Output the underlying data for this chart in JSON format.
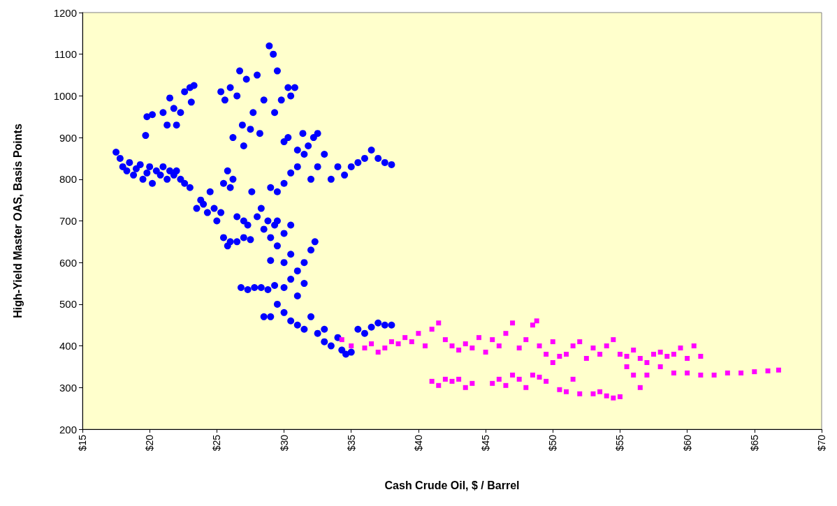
{
  "chart_data": {
    "type": "scatter",
    "xlabel": "Cash Crude Oil, $ / Barrel",
    "ylabel": "High-Yield Master OAS, Basis Points",
    "xlim": [
      15,
      70
    ],
    "ylim": [
      200,
      1200
    ],
    "xticks": [
      {
        "value": 15,
        "label": "$15"
      },
      {
        "value": 20,
        "label": "$20"
      },
      {
        "value": 25,
        "label": "$25"
      },
      {
        "value": 30,
        "label": "$30"
      },
      {
        "value": 35,
        "label": "$35"
      },
      {
        "value": 40,
        "label": "$40"
      },
      {
        "value": 45,
        "label": "$45"
      },
      {
        "value": 50,
        "label": "$50"
      },
      {
        "value": 55,
        "label": "$55"
      },
      {
        "value": 60,
        "label": "$60"
      },
      {
        "value": 65,
        "label": "$65"
      },
      {
        "value": 70,
        "label": "$70"
      }
    ],
    "yticks": [
      200,
      300,
      400,
      500,
      600,
      700,
      800,
      900,
      1000,
      1100,
      1200
    ],
    "grid": false,
    "series": [
      {
        "color": "#0000ff",
        "marker": "circle",
        "x": [
          17.5,
          17.8,
          18,
          18.3,
          18.5,
          18.8,
          19,
          19.3,
          19.5,
          19.8,
          20,
          20.2,
          20.5,
          20.8,
          21,
          21.3,
          21.5,
          21.8,
          22,
          22.3,
          22.6,
          23,
          19.7,
          19.8,
          20.2,
          21,
          21.3,
          21.5,
          21.8,
          22,
          22.3,
          22.6,
          23,
          23.3,
          23.1,
          23.5,
          23.8,
          24,
          24.3,
          24.5,
          24.8,
          25,
          25.3,
          25.5,
          25.8,
          26,
          25.5,
          25.8,
          26,
          26.2,
          25.3,
          25.6,
          26,
          26.2,
          26.5,
          26.7,
          26.9,
          27,
          27.2,
          27.5,
          27.7,
          28,
          28.2,
          28.5,
          28.9,
          29.2,
          29.5,
          29.3,
          29.8,
          30,
          30.3,
          30.5,
          30.3,
          30.8,
          31,
          31.4,
          31.8,
          32.2,
          32.5,
          26.5,
          27,
          27.3,
          27.6,
          28,
          28.3,
          28.5,
          28.8,
          29,
          29.3,
          29.5,
          30,
          30.5,
          26.5,
          27,
          27.5,
          29,
          29.5,
          30,
          30.5,
          31,
          31.5,
          32,
          32.5,
          33,
          33.5,
          34,
          34.5,
          35,
          35.5,
          36,
          36.5,
          37,
          37.5,
          38,
          29,
          29.5,
          30,
          30.5,
          31,
          31.5,
          32,
          32.3,
          30,
          30.5,
          31,
          31.5,
          29.5,
          30,
          30.5,
          31,
          31.5,
          32,
          29,
          28.5,
          26.8,
          27.3,
          27.8,
          28.3,
          28.8,
          29.3,
          32.5,
          33,
          33.5,
          34,
          34.3,
          34.6,
          35,
          35.5,
          36,
          36.5,
          37,
          37.5,
          38,
          33
        ],
        "values": [
          865,
          850,
          830,
          820,
          840,
          810,
          825,
          835,
          800,
          815,
          830,
          790,
          820,
          810,
          830,
          800,
          820,
          810,
          820,
          800,
          790,
          780,
          905,
          950,
          955,
          960,
          930,
          995,
          970,
          930,
          960,
          1010,
          1020,
          1025,
          985,
          730,
          750,
          740,
          720,
          770,
          730,
          700,
          720,
          660,
          640,
          650,
          790,
          820,
          780,
          800,
          1010,
          990,
          1020,
          900,
          1000,
          1060,
          930,
          880,
          1040,
          920,
          960,
          1050,
          910,
          990,
          1120,
          1100,
          1060,
          960,
          990,
          890,
          1020,
          1000,
          900,
          1020,
          870,
          910,
          880,
          900,
          910,
          710,
          700,
          690,
          770,
          710,
          730,
          680,
          700,
          660,
          690,
          700,
          670,
          690,
          650,
          660,
          655,
          780,
          770,
          790,
          815,
          830,
          860,
          800,
          830,
          860,
          800,
          830,
          810,
          830,
          840,
          850,
          870,
          850,
          840,
          835,
          605,
          640,
          600,
          620,
          580,
          600,
          630,
          650,
          540,
          560,
          520,
          550,
          500,
          480,
          460,
          450,
          440,
          470,
          470,
          470,
          540,
          535,
          540,
          540,
          535,
          545,
          430,
          410,
          400,
          420,
          390,
          380,
          385,
          440,
          430,
          445,
          455,
          450,
          450,
          440
        ]
      },
      {
        "color": "#ff00ff",
        "marker": "square",
        "x": [
          34.3,
          35,
          36,
          36.5,
          37,
          37.5,
          38,
          38.5,
          39,
          39.5,
          40,
          40.5,
          41,
          41.5,
          42,
          42.5,
          43,
          43.5,
          44,
          44.5,
          45,
          45.5,
          46,
          46.5,
          47,
          47.5,
          48,
          48.5,
          48.8,
          49,
          49.5,
          50,
          50.5,
          51,
          51.5,
          52,
          52.5,
          53,
          53.5,
          54,
          54.5,
          55,
          55.5,
          56,
          56.5,
          57,
          57.5,
          58,
          58.5,
          59,
          59.5,
          60,
          60.5,
          61,
          41,
          41.5,
          42,
          42.5,
          43,
          43.5,
          44,
          45.5,
          46,
          46.5,
          47,
          47.5,
          48,
          48.5,
          49,
          49.5,
          50,
          50.5,
          51,
          51.5,
          52,
          53,
          53.5,
          54,
          54.5,
          55,
          55.5,
          56,
          56.5,
          57,
          58,
          59,
          60,
          61,
          62,
          63,
          64,
          65,
          66,
          66.8
        ],
        "values": [
          415,
          400,
          395,
          405,
          385,
          395,
          410,
          405,
          420,
          410,
          430,
          400,
          440,
          455,
          415,
          400,
          390,
          405,
          395,
          420,
          385,
          415,
          400,
          430,
          455,
          395,
          415,
          450,
          460,
          400,
          380,
          410,
          375,
          380,
          400,
          410,
          370,
          395,
          380,
          400,
          415,
          380,
          375,
          390,
          370,
          360,
          380,
          385,
          375,
          380,
          395,
          370,
          400,
          375,
          315,
          305,
          320,
          315,
          320,
          300,
          310,
          310,
          320,
          305,
          330,
          320,
          300,
          330,
          325,
          315,
          360,
          295,
          290,
          320,
          285,
          285,
          290,
          280,
          275,
          278,
          350,
          330,
          300,
          330,
          350,
          335,
          335,
          330,
          330,
          335,
          335,
          338,
          340,
          342
        ]
      }
    ]
  }
}
